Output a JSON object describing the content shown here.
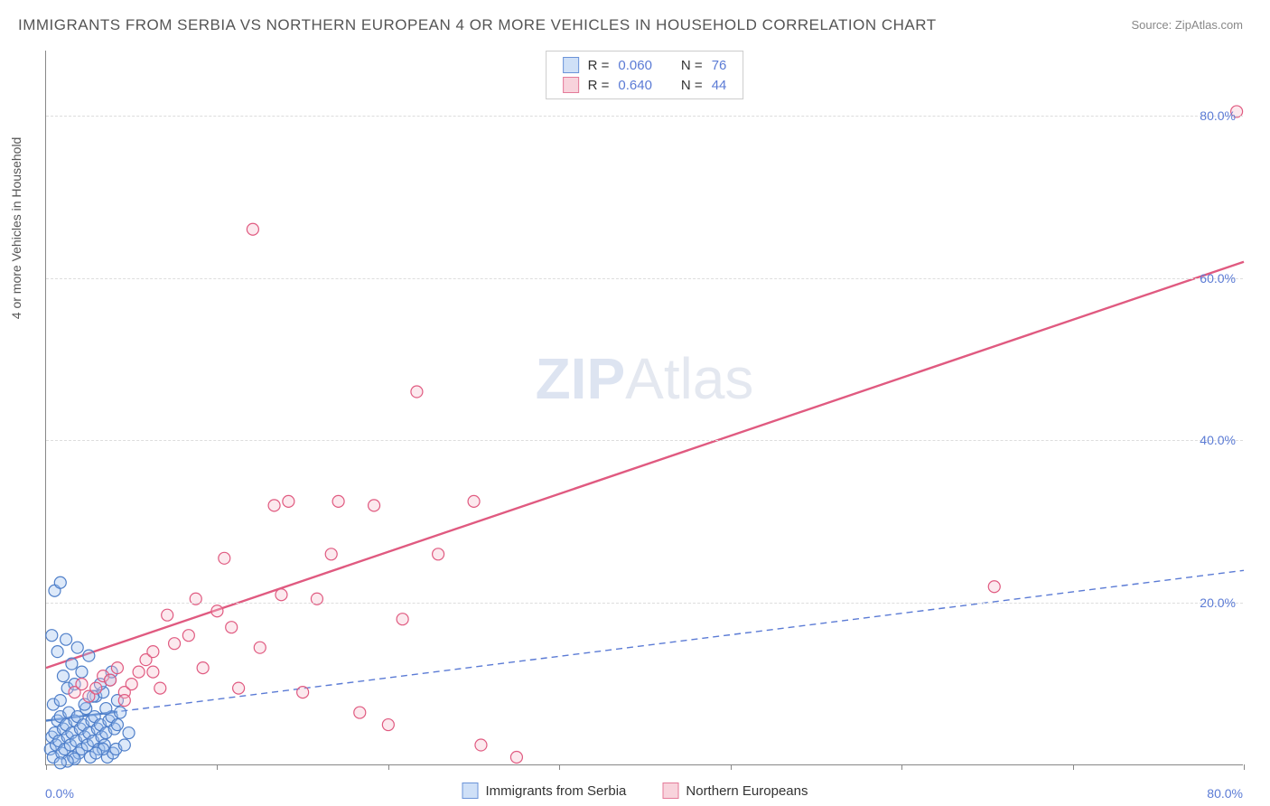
{
  "title": "IMMIGRANTS FROM SERBIA VS NORTHERN EUROPEAN 4 OR MORE VEHICLES IN HOUSEHOLD CORRELATION CHART",
  "source": "Source: ZipAtlas.com",
  "y_axis_label": "4 or more Vehicles in Household",
  "watermark_bold": "ZIP",
  "watermark_light": "Atlas",
  "chart": {
    "type": "scatter",
    "xlim": [
      0,
      84
    ],
    "ylim": [
      0,
      88
    ],
    "background_color": "#ffffff",
    "grid_color": "#dddddd",
    "grid_dash": "4,4",
    "axis_color": "#888888",
    "tick_label_color": "#5b7bd5",
    "tick_label_fontsize": 14,
    "y_gridlines": [
      20,
      40,
      60,
      80
    ],
    "y_tick_labels": [
      {
        "value": 20,
        "label": "20.0%"
      },
      {
        "value": 40,
        "label": "40.0%"
      },
      {
        "value": 60,
        "label": "60.0%"
      },
      {
        "value": 80,
        "label": "80.0%"
      }
    ],
    "x_ticks": [
      0,
      12,
      24,
      36,
      48,
      60,
      72,
      84
    ],
    "x_tick_labels": [
      {
        "value": 0,
        "label": "0.0%"
      },
      {
        "value": 80,
        "label": "80.0%"
      }
    ],
    "marker_radius": 6.5,
    "marker_stroke_width": 1.2,
    "marker_fill_opacity": 0.35,
    "trendline_width_solid": 2.4,
    "trendline_width_dashed": 1.4,
    "trendline_dash": "7,5"
  },
  "stats_box": {
    "border_color": "#cccccc",
    "rows": [
      {
        "swatch_fill": "#cfe0f7",
        "swatch_border": "#6a93d8",
        "r_label": "R =",
        "r_value": "0.060",
        "n_label": "N =",
        "n_value": "76"
      },
      {
        "swatch_fill": "#f8d3dc",
        "swatch_border": "#e47a99",
        "r_label": "R =",
        "r_value": "0.640",
        "n_label": "N =",
        "n_value": "44"
      }
    ]
  },
  "bottom_legend": [
    {
      "swatch_fill": "#cfe0f7",
      "swatch_border": "#6a93d8",
      "label": "Immigrants from Serbia"
    },
    {
      "swatch_fill": "#f8d3dc",
      "swatch_border": "#e47a99",
      "label": "Northern Europeans"
    }
  ],
  "series": [
    {
      "name": "Immigrants from Serbia",
      "fill": "#9dc0ee",
      "stroke": "#4f7fc9",
      "trend": {
        "x1": 0,
        "y1": 5.5,
        "x2": 84,
        "y2": 24,
        "style": "dashed",
        "color": "#5b7bd5"
      },
      "trend_solid_segment": {
        "x1": 0,
        "y1": 5.5,
        "x2": 5,
        "y2": 6.6,
        "color": "#4f7fc9"
      },
      "points": [
        [
          0.3,
          2.0
        ],
        [
          0.4,
          3.5
        ],
        [
          0.5,
          1.0
        ],
        [
          0.6,
          4.0
        ],
        [
          0.7,
          2.5
        ],
        [
          0.8,
          5.5
        ],
        [
          0.9,
          3.0
        ],
        [
          1.0,
          6.0
        ],
        [
          1.1,
          1.5
        ],
        [
          1.2,
          4.5
        ],
        [
          1.3,
          2.0
        ],
        [
          1.4,
          5.0
        ],
        [
          1.5,
          3.5
        ],
        [
          1.6,
          6.5
        ],
        [
          1.7,
          2.5
        ],
        [
          1.8,
          4.0
        ],
        [
          1.9,
          1.0
        ],
        [
          2.0,
          5.5
        ],
        [
          2.1,
          3.0
        ],
        [
          2.2,
          6.0
        ],
        [
          2.3,
          1.5
        ],
        [
          2.4,
          4.5
        ],
        [
          2.5,
          2.0
        ],
        [
          2.6,
          5.0
        ],
        [
          2.7,
          3.5
        ],
        [
          2.8,
          7.0
        ],
        [
          2.9,
          2.5
        ],
        [
          3.0,
          4.0
        ],
        [
          3.1,
          1.0
        ],
        [
          3.2,
          5.5
        ],
        [
          3.3,
          3.0
        ],
        [
          3.4,
          6.0
        ],
        [
          3.5,
          8.5
        ],
        [
          3.6,
          4.5
        ],
        [
          3.7,
          2.0
        ],
        [
          3.8,
          5.0
        ],
        [
          3.9,
          3.5
        ],
        [
          4.0,
          9.0
        ],
        [
          4.1,
          2.5
        ],
        [
          4.2,
          4.0
        ],
        [
          4.3,
          1.0
        ],
        [
          4.4,
          5.5
        ],
        [
          4.5,
          10.5
        ],
        [
          4.6,
          6.0
        ],
        [
          4.7,
          1.5
        ],
        [
          4.8,
          4.5
        ],
        [
          4.9,
          2.0
        ],
        [
          5.0,
          5.0
        ],
        [
          0.5,
          7.5
        ],
        [
          1.0,
          8.0
        ],
        [
          1.5,
          9.5
        ],
        [
          2.0,
          10.0
        ],
        [
          2.5,
          11.5
        ],
        [
          3.0,
          13.5
        ],
        [
          0.8,
          14.0
        ],
        [
          1.2,
          11.0
        ],
        [
          1.8,
          12.5
        ],
        [
          2.2,
          14.5
        ],
        [
          0.6,
          21.5
        ],
        [
          1.0,
          22.5
        ],
        [
          0.4,
          16.0
        ],
        [
          2.7,
          7.5
        ],
        [
          3.3,
          8.5
        ],
        [
          3.8,
          10.0
        ],
        [
          4.2,
          7.0
        ],
        [
          4.6,
          11.5
        ],
        [
          5.0,
          8.0
        ],
        [
          1.4,
          15.5
        ],
        [
          5.5,
          2.5
        ],
        [
          5.8,
          4.0
        ],
        [
          5.2,
          6.5
        ],
        [
          4.0,
          2.0
        ],
        [
          3.5,
          1.5
        ],
        [
          2.0,
          0.8
        ],
        [
          1.5,
          0.5
        ],
        [
          1.0,
          0.3
        ]
      ]
    },
    {
      "name": "Northern Europeans",
      "fill": "#f5c0cf",
      "stroke": "#e05a80",
      "trend": {
        "x1": 0,
        "y1": 12,
        "x2": 84,
        "y2": 62,
        "style": "solid",
        "color": "#e05a80"
      },
      "points": [
        [
          2.0,
          9.0
        ],
        [
          2.5,
          10.0
        ],
        [
          3.0,
          8.5
        ],
        [
          3.5,
          9.5
        ],
        [
          4.0,
          11.0
        ],
        [
          4.5,
          10.5
        ],
        [
          5.0,
          12.0
        ],
        [
          5.5,
          9.0
        ],
        [
          6.0,
          10.0
        ],
        [
          6.5,
          11.5
        ],
        [
          7.0,
          13.0
        ],
        [
          7.5,
          14.0
        ],
        [
          8.0,
          9.5
        ],
        [
          8.5,
          18.5
        ],
        [
          9.0,
          15.0
        ],
        [
          10.0,
          16.0
        ],
        [
          10.5,
          20.5
        ],
        [
          11.0,
          12.0
        ],
        [
          12.0,
          19.0
        ],
        [
          12.5,
          25.5
        ],
        [
          13.0,
          17.0
        ],
        [
          13.5,
          9.5
        ],
        [
          15.0,
          14.5
        ],
        [
          16.0,
          32.0
        ],
        [
          16.5,
          21.0
        ],
        [
          17.0,
          32.5
        ],
        [
          18.0,
          9.0
        ],
        [
          19.0,
          20.5
        ],
        [
          20.0,
          26.0
        ],
        [
          20.5,
          32.5
        ],
        [
          22.0,
          6.5
        ],
        [
          23.0,
          32.0
        ],
        [
          24.0,
          5.0
        ],
        [
          25.0,
          18.0
        ],
        [
          26.0,
          46.0
        ],
        [
          27.5,
          26.0
        ],
        [
          30.0,
          32.5
        ],
        [
          30.5,
          2.5
        ],
        [
          33.0,
          1.0
        ],
        [
          14.5,
          66.0
        ],
        [
          7.5,
          11.5
        ],
        [
          5.5,
          8.0
        ],
        [
          66.5,
          22.0
        ],
        [
          83.5,
          80.5
        ]
      ]
    }
  ]
}
